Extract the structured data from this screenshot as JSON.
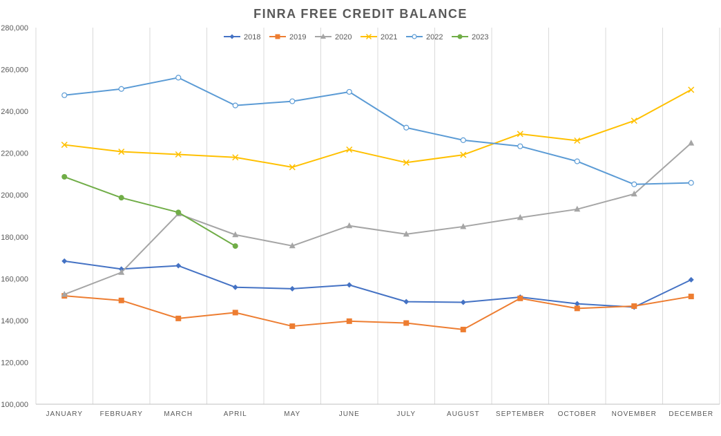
{
  "chart_data": {
    "type": "line",
    "title": "FINRA FREE CREDIT BALANCE",
    "xlabel": "",
    "ylabel": "",
    "categories": [
      "JANUARY",
      "FEBRUARY",
      "MARCH",
      "APRIL",
      "MAY",
      "JUNE",
      "JULY",
      "AUGUST",
      "SEPTEMBER",
      "OCTOBER",
      "NOVEMBER",
      "DECEMBER"
    ],
    "ylim": [
      100000,
      280000
    ],
    "y_ticks": [
      100000,
      120000,
      140000,
      160000,
      180000,
      200000,
      220000,
      240000,
      260000,
      280000
    ],
    "y_tick_labels": [
      "100,000",
      "120,000",
      "140,000",
      "160,000",
      "180,000",
      "200,000",
      "220,000",
      "240,000",
      "260,000",
      "280,000"
    ],
    "grid": "vertical",
    "legend_position": "top",
    "series": [
      {
        "name": "2018",
        "color": "#4472C4",
        "marker": "diamond",
        "values": [
          168400,
          164600,
          166200,
          155900,
          155200,
          157000,
          149000,
          148700,
          151200,
          148000,
          146400,
          159500
        ]
      },
      {
        "name": "2019",
        "color": "#ED7D31",
        "marker": "square",
        "values": [
          151800,
          149600,
          141000,
          143800,
          137300,
          139700,
          138800,
          135700,
          150600,
          145800,
          146900,
          151500
        ]
      },
      {
        "name": "2020",
        "color": "#A5A5A5",
        "marker": "triangle",
        "values": [
          152500,
          163000,
          191000,
          181000,
          175700,
          185300,
          181300,
          184900,
          189200,
          193200,
          200500,
          224800
        ]
      },
      {
        "name": "2021",
        "color": "#FFC000",
        "marker": "x",
        "values": [
          224000,
          220700,
          219400,
          218000,
          213300,
          221700,
          215500,
          219200,
          229200,
          226000,
          235500,
          250300
        ]
      },
      {
        "name": "2022",
        "color": "#5B9BD5",
        "marker": "circle-open",
        "values": [
          247700,
          250700,
          256100,
          242800,
          244800,
          249300,
          232200,
          226200,
          223300,
          216100,
          205100,
          205800
        ]
      },
      {
        "name": "2023",
        "color": "#70AD47",
        "marker": "circle",
        "values": [
          208700,
          198700,
          191700,
          175600,
          null,
          null,
          null,
          null,
          null,
          null,
          null,
          null
        ]
      }
    ]
  }
}
